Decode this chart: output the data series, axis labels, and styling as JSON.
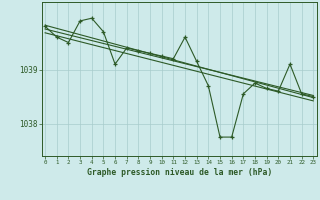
{
  "hours": [
    0,
    1,
    2,
    3,
    4,
    5,
    6,
    7,
    8,
    9,
    10,
    11,
    12,
    13,
    14,
    15,
    16,
    17,
    18,
    19,
    20,
    21,
    22,
    23
  ],
  "pressure": [
    1039.8,
    1039.6,
    1039.5,
    1039.9,
    1039.95,
    1039.7,
    1039.1,
    1039.4,
    1039.35,
    1039.3,
    1039.25,
    1039.2,
    1039.6,
    1039.15,
    1038.7,
    1037.75,
    1037.75,
    1038.55,
    1038.75,
    1038.65,
    1038.6,
    1039.1,
    1038.55,
    1038.5
  ],
  "trend1_x": [
    0,
    23
  ],
  "trend1_y": [
    1039.82,
    1038.48
  ],
  "trend2_x": [
    0,
    23
  ],
  "trend2_y": [
    1039.75,
    1038.52
  ],
  "trend3_x": [
    0,
    23
  ],
  "trend3_y": [
    1039.68,
    1038.42
  ],
  "line_color": "#2d5a27",
  "bg_color": "#ceeaea",
  "grid_color": "#a8cccc",
  "xlabel": "Graphe pression niveau de la mer (hPa)",
  "ytick_labels": [
    "1038",
    "1039"
  ],
  "ytick_values": [
    1038.0,
    1039.0
  ],
  "ylim": [
    1037.4,
    1040.25
  ],
  "xlim": [
    -0.3,
    23.3
  ]
}
